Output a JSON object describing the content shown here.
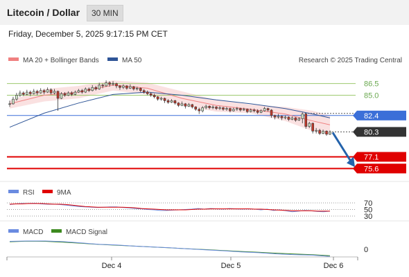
{
  "header": {
    "title": "Litecoin / Dollar",
    "interval": "30 MIN"
  },
  "timestamp": "Friday, December 5, 2025 9:17:15 PM CET",
  "copyright": "Research © 2025 Trading Central",
  "colors": {
    "ma20": "#f08080",
    "ma50": "#2f5597",
    "green_level": "#9dc96e",
    "blue_level": "#3b6fd8",
    "red_level": "#e00000",
    "up_candle": "#cfe3c8",
    "down_candle": "#c0392b",
    "rsi": "#6a8be0",
    "rsi_ma": "#e00000",
    "macd": "#6a8be0",
    "macd_signal": "#3d8a1f",
    "arrow": "#2463ab"
  },
  "chart_data": [
    {
      "type": "candlestick",
      "panel": "price",
      "legend": [
        "MA 20 + Bollinger Bands",
        "MA 50"
      ],
      "legend_position": "top-left",
      "x_ticks": [
        "Dec 4",
        "Dec 5",
        "Dec 6"
      ],
      "ylim": [
        74.3,
        88.6
      ],
      "levels": [
        {
          "value": 86.5,
          "label": "86.5",
          "type": "resistance"
        },
        {
          "value": 85.0,
          "label": "85.0",
          "type": "resistance"
        },
        {
          "value": 82.4,
          "label": "82.4",
          "type": "pivot"
        },
        {
          "value": 80.3,
          "label": "80.3",
          "type": "last"
        },
        {
          "value": 77.1,
          "label": "77.1",
          "type": "support"
        },
        {
          "value": 75.6,
          "label": "75.6",
          "type": "support"
        }
      ],
      "candles": [
        [
          83.9,
          83.9,
          84.3,
          83.5
        ],
        [
          83.9,
          84.5,
          84.8,
          83.8
        ],
        [
          84.5,
          85.0,
          85.3,
          84.3
        ],
        [
          85.0,
          85.3,
          85.6,
          84.8
        ],
        [
          85.3,
          85.1,
          85.5,
          84.9
        ],
        [
          85.1,
          85.4,
          85.7,
          85.0
        ],
        [
          85.4,
          85.2,
          85.6,
          84.9
        ],
        [
          85.2,
          85.5,
          85.8,
          85.1
        ],
        [
          85.5,
          85.3,
          85.7,
          85.0
        ],
        [
          85.3,
          85.6,
          85.9,
          85.2
        ],
        [
          85.6,
          85.4,
          85.8,
          85.1
        ],
        [
          85.4,
          85.7,
          86.0,
          85.3
        ],
        [
          85.7,
          85.3,
          85.9,
          85.1
        ],
        [
          85.3,
          85.5,
          85.8,
          85.1
        ],
        [
          85.5,
          84.6,
          85.6,
          83.0
        ],
        [
          84.6,
          85.2,
          85.4,
          84.5
        ],
        [
          85.2,
          85.0,
          85.4,
          84.8
        ],
        [
          85.0,
          85.3,
          85.5,
          84.9
        ],
        [
          85.3,
          85.1,
          85.5,
          84.9
        ],
        [
          85.1,
          85.4,
          85.6,
          85.0
        ],
        [
          85.4,
          85.6,
          85.8,
          85.3
        ],
        [
          85.6,
          85.4,
          85.8,
          85.2
        ],
        [
          85.4,
          85.8,
          86.0,
          85.3
        ],
        [
          85.8,
          85.6,
          86.0,
          85.4
        ],
        [
          85.6,
          86.0,
          86.3,
          85.5
        ],
        [
          86.0,
          85.8,
          86.2,
          85.6
        ],
        [
          85.8,
          86.3,
          86.6,
          85.7
        ],
        [
          86.3,
          86.2,
          86.5,
          85.9
        ],
        [
          86.2,
          86.6,
          86.9,
          86.1
        ],
        [
          86.6,
          86.4,
          86.8,
          86.1
        ],
        [
          86.4,
          86.5,
          86.8,
          86.2
        ],
        [
          86.5,
          86.2,
          86.6,
          85.9
        ],
        [
          86.2,
          86.0,
          86.3,
          85.7
        ],
        [
          86.0,
          86.2,
          86.4,
          85.8
        ],
        [
          86.2,
          85.9,
          86.3,
          85.7
        ],
        [
          85.9,
          86.1,
          86.4,
          85.8
        ],
        [
          86.1,
          85.8,
          86.2,
          85.6
        ],
        [
          85.8,
          85.9,
          86.1,
          85.6
        ],
        [
          85.9,
          85.6,
          86.0,
          85.4
        ],
        [
          85.6,
          85.4,
          85.8,
          85.2
        ],
        [
          85.4,
          85.2,
          85.6,
          85.0
        ],
        [
          85.2,
          85.0,
          85.4,
          84.8
        ],
        [
          85.0,
          84.8,
          85.2,
          84.6
        ],
        [
          84.8,
          84.5,
          84.9,
          84.3
        ],
        [
          84.5,
          84.6,
          84.8,
          84.3
        ],
        [
          84.6,
          84.3,
          84.7,
          84.0
        ],
        [
          84.3,
          84.1,
          84.5,
          83.9
        ],
        [
          84.1,
          84.3,
          84.5,
          84.0
        ],
        [
          84.3,
          84.0,
          84.4,
          83.8
        ],
        [
          84.0,
          83.7,
          84.1,
          83.5
        ],
        [
          83.7,
          83.9,
          84.2,
          83.6
        ],
        [
          83.9,
          83.6,
          84.0,
          83.3
        ],
        [
          83.6,
          83.8,
          84.0,
          83.5
        ],
        [
          83.8,
          83.5,
          83.9,
          83.3
        ],
        [
          83.5,
          83.2,
          83.6,
          83.0
        ],
        [
          83.2,
          83.0,
          83.4,
          82.6
        ],
        [
          83.0,
          83.4,
          83.6,
          82.8
        ],
        [
          83.4,
          83.6,
          83.8,
          83.2
        ],
        [
          83.6,
          83.4,
          83.7,
          83.2
        ],
        [
          83.4,
          83.5,
          83.7,
          83.2
        ],
        [
          83.5,
          83.3,
          83.6,
          83.1
        ],
        [
          83.3,
          83.4,
          83.6,
          83.1
        ],
        [
          83.4,
          83.2,
          83.5,
          83.0
        ],
        [
          83.2,
          83.3,
          83.5,
          83.0
        ],
        [
          83.3,
          83.0,
          83.4,
          82.8
        ],
        [
          83.0,
          83.2,
          83.4,
          82.9
        ],
        [
          83.2,
          83.3,
          83.5,
          83.0
        ],
        [
          83.3,
          83.1,
          83.4,
          82.9
        ],
        [
          83.1,
          83.2,
          83.4,
          83.0
        ],
        [
          83.2,
          82.9,
          83.3,
          82.7
        ],
        [
          82.9,
          83.1,
          83.3,
          82.8
        ],
        [
          83.1,
          83.0,
          83.3,
          82.8
        ],
        [
          83.0,
          82.8,
          83.2,
          82.6
        ],
        [
          82.8,
          83.0,
          83.2,
          82.7
        ],
        [
          83.0,
          83.3,
          83.5,
          82.9
        ],
        [
          83.3,
          83.1,
          83.4,
          82.9
        ],
        [
          83.1,
          82.4,
          83.2,
          82.1
        ],
        [
          82.4,
          82.2,
          82.5,
          81.9
        ],
        [
          82.2,
          82.3,
          82.6,
          82.0
        ],
        [
          82.3,
          82.1,
          82.4,
          81.8
        ],
        [
          82.1,
          82.2,
          82.4,
          81.9
        ],
        [
          82.2,
          81.9,
          82.3,
          81.7
        ],
        [
          81.9,
          82.1,
          82.3,
          81.8
        ],
        [
          82.1,
          81.8,
          82.2,
          81.6
        ],
        [
          81.8,
          82.0,
          82.2,
          81.7
        ],
        [
          82.0,
          82.6,
          82.8,
          81.4
        ],
        [
          82.6,
          81.0,
          82.7,
          80.7
        ],
        [
          81.0,
          81.4,
          81.6,
          80.8
        ],
        [
          81.4,
          80.4,
          81.5,
          80.1
        ],
        [
          80.4,
          80.5,
          80.8,
          80.1
        ],
        [
          80.5,
          80.1,
          80.7,
          79.9
        ],
        [
          80.1,
          80.4,
          80.6,
          80.0
        ],
        [
          80.4,
          80.0,
          80.5,
          79.8
        ],
        [
          80.0,
          80.3,
          80.5,
          79.9
        ]
      ],
      "ma20": [
        [
          0,
          83.9
        ],
        [
          10,
          85.0
        ],
        [
          20,
          85.4
        ],
        [
          30,
          86.3
        ],
        [
          40,
          85.9
        ],
        [
          50,
          84.6
        ],
        [
          60,
          83.7
        ],
        [
          70,
          83.2
        ],
        [
          80,
          82.6
        ],
        [
          88,
          81.7
        ],
        [
          93,
          81.2
        ]
      ],
      "boll_upper": [
        [
          0,
          84.3
        ],
        [
          10,
          85.8
        ],
        [
          20,
          86.2
        ],
        [
          30,
          86.9
        ],
        [
          40,
          86.6
        ],
        [
          50,
          85.5
        ],
        [
          60,
          84.4
        ],
        [
          70,
          83.8
        ],
        [
          80,
          83.5
        ],
        [
          88,
          83.0
        ],
        [
          93,
          82.4
        ]
      ],
      "boll_lower": [
        [
          0,
          83.3
        ],
        [
          10,
          84.2
        ],
        [
          20,
          84.6
        ],
        [
          30,
          85.6
        ],
        [
          40,
          85.1
        ],
        [
          50,
          83.7
        ],
        [
          60,
          82.9
        ],
        [
          70,
          82.7
        ],
        [
          80,
          81.7
        ],
        [
          88,
          80.4
        ],
        [
          93,
          79.9
        ]
      ],
      "ma50": [
        [
          0,
          80.9
        ],
        [
          10,
          82.7
        ],
        [
          20,
          84.0
        ],
        [
          30,
          85.1
        ],
        [
          40,
          85.4
        ],
        [
          50,
          85.0
        ],
        [
          60,
          84.4
        ],
        [
          70,
          83.9
        ],
        [
          80,
          83.3
        ],
        [
          88,
          82.6
        ],
        [
          93,
          82.1
        ]
      ],
      "forecast_arrow": {
        "from": 80.3,
        "to": 75.6
      }
    },
    {
      "type": "line",
      "panel": "rsi",
      "series": [
        {
          "name": "RSI",
          "values": [
            65,
            67,
            68,
            68,
            69,
            67,
            66,
            66,
            65,
            63,
            61,
            59,
            58,
            57,
            56,
            57,
            58,
            58,
            56,
            55,
            53,
            52,
            50,
            49,
            47,
            47,
            48,
            49,
            50,
            51,
            53,
            51,
            53,
            52,
            51,
            53,
            52,
            51,
            52,
            51,
            49,
            51,
            47,
            49,
            46,
            43,
            45,
            47,
            46,
            44,
            43,
            45
          ]
        },
        {
          "name": "9MA",
          "values": [
            66,
            67,
            67,
            68,
            68,
            68,
            67,
            66,
            66,
            65,
            63,
            61,
            59,
            58,
            57,
            57,
            57,
            57,
            57,
            56,
            55,
            53,
            52,
            51,
            50,
            49,
            49,
            49,
            49,
            50,
            51,
            51,
            52,
            52,
            52,
            52,
            52,
            52,
            52,
            51,
            51,
            50,
            49,
            48,
            47,
            46,
            46,
            46,
            46,
            45,
            45,
            45
          ]
        }
      ],
      "y_ticks": [
        70,
        50,
        30
      ],
      "ylim": [
        0,
        100
      ]
    },
    {
      "type": "line",
      "panel": "macd",
      "series": [
        {
          "name": "MACD",
          "values": [
            0.82,
            0.86,
            0.86,
            0.79,
            0.66,
            0.52,
            0.44,
            0.33,
            0.24,
            0.16,
            0.05,
            -0.06,
            -0.15,
            -0.27,
            -0.35,
            -0.47,
            -0.55,
            -0.6,
            -0.73
          ]
        },
        {
          "name": "MACD Signal",
          "values": [
            0.78,
            0.84,
            0.82,
            0.73,
            0.62,
            0.51,
            0.42,
            0.33,
            0.24,
            0.15,
            0.06,
            -0.03,
            -0.12,
            -0.22,
            -0.31,
            -0.4,
            -0.48,
            -0.55,
            -0.66
          ]
        }
      ],
      "y_ticks": [
        0
      ]
    }
  ]
}
